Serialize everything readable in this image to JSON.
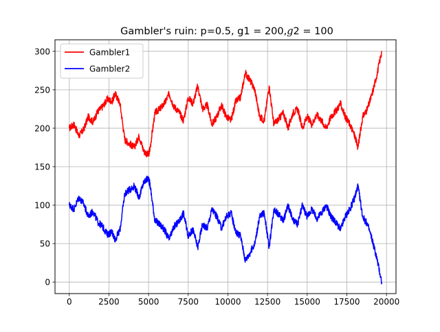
{
  "chart_data": {
    "type": "line",
    "title": "Gambler's ruin: p=0.5, g1 = 200,$g2 = 100",
    "title_display": {
      "prefix": "Gambler's ruin: p=0.5, g1 = 200,",
      "math_var": "g",
      "math_rest": "2 = 100"
    },
    "xlabel": "",
    "ylabel": "",
    "xlim": [
      -900,
      20600
    ],
    "ylim": [
      -15,
      315
    ],
    "xticks": [
      0,
      2500,
      5000,
      7500,
      10000,
      12500,
      15000,
      17500,
      20000
    ],
    "xtick_labels": [
      "0",
      "2500",
      "5000",
      "7500",
      "10000",
      "12500",
      "15000",
      "17500",
      "20000"
    ],
    "yticks": [
      0,
      50,
      100,
      150,
      200,
      250,
      300
    ],
    "ytick_labels": [
      "0",
      "50",
      "100",
      "150",
      "200",
      "250",
      "300"
    ],
    "grid": true,
    "legend": "top-left",
    "series": [
      {
        "name": "Gambler1",
        "color": "#ff0000",
        "x": [
          0,
          300,
          600,
          900,
          1200,
          1500,
          1800,
          2100,
          2400,
          2700,
          2900,
          3200,
          3500,
          3800,
          4100,
          4400,
          4700,
          5000,
          5100,
          5400,
          5700,
          6000,
          6300,
          6600,
          6900,
          7200,
          7500,
          7800,
          8100,
          8400,
          8700,
          9000,
          9300,
          9600,
          9900,
          10200,
          10500,
          10800,
          11100,
          11400,
          11700,
          12000,
          12300,
          12600,
          12900,
          13200,
          13500,
          13800,
          14100,
          14400,
          14700,
          15000,
          15300,
          15600,
          15900,
          16200,
          16500,
          16800,
          17100,
          17400,
          17700,
          18000,
          18200,
          18500,
          18800,
          19100,
          19400,
          19700
        ],
        "y": [
          200,
          205,
          190,
          198,
          215,
          208,
          222,
          228,
          238,
          235,
          245,
          232,
          185,
          180,
          175,
          190,
          170,
          165,
          175,
          220,
          225,
          232,
          245,
          228,
          222,
          210,
          240,
          232,
          255,
          225,
          230,
          205,
          215,
          230,
          215,
          210,
          235,
          240,
          272,
          262,
          250,
          215,
          210,
          255,
          205,
          212,
          220,
          200,
          220,
          225,
          200,
          215,
          205,
          218,
          210,
          200,
          215,
          222,
          232,
          215,
          205,
          190,
          175,
          215,
          225,
          245,
          270,
          300
        ]
      },
      {
        "name": "Gambler2",
        "color": "#0000ff",
        "x": [
          0,
          300,
          600,
          900,
          1200,
          1500,
          1800,
          2100,
          2400,
          2700,
          2900,
          3200,
          3500,
          3800,
          4100,
          4400,
          4700,
          5000,
          5100,
          5400,
          5700,
          6000,
          6300,
          6600,
          6900,
          7200,
          7500,
          7800,
          8100,
          8400,
          8700,
          9000,
          9300,
          9600,
          9900,
          10200,
          10500,
          10800,
          11100,
          11400,
          11700,
          12000,
          12300,
          12600,
          12900,
          13200,
          13500,
          13800,
          14100,
          14400,
          14700,
          15000,
          15300,
          15600,
          15900,
          16200,
          16500,
          16800,
          17100,
          17400,
          17700,
          18000,
          18200,
          18500,
          18800,
          19100,
          19400,
          19700
        ],
        "y": [
          100,
          95,
          110,
          102,
          85,
          92,
          78,
          72,
          62,
          65,
          55,
          68,
          115,
          120,
          125,
          110,
          130,
          135,
          125,
          80,
          75,
          68,
          55,
          72,
          78,
          90,
          60,
          68,
          45,
          75,
          70,
          95,
          85,
          70,
          85,
          90,
          65,
          60,
          28,
          38,
          50,
          85,
          90,
          45,
          95,
          88,
          80,
          100,
          80,
          75,
          100,
          85,
          95,
          82,
          90,
          100,
          85,
          78,
          68,
          85,
          95,
          110,
          125,
          85,
          75,
          55,
          30,
          0
        ]
      }
    ]
  }
}
